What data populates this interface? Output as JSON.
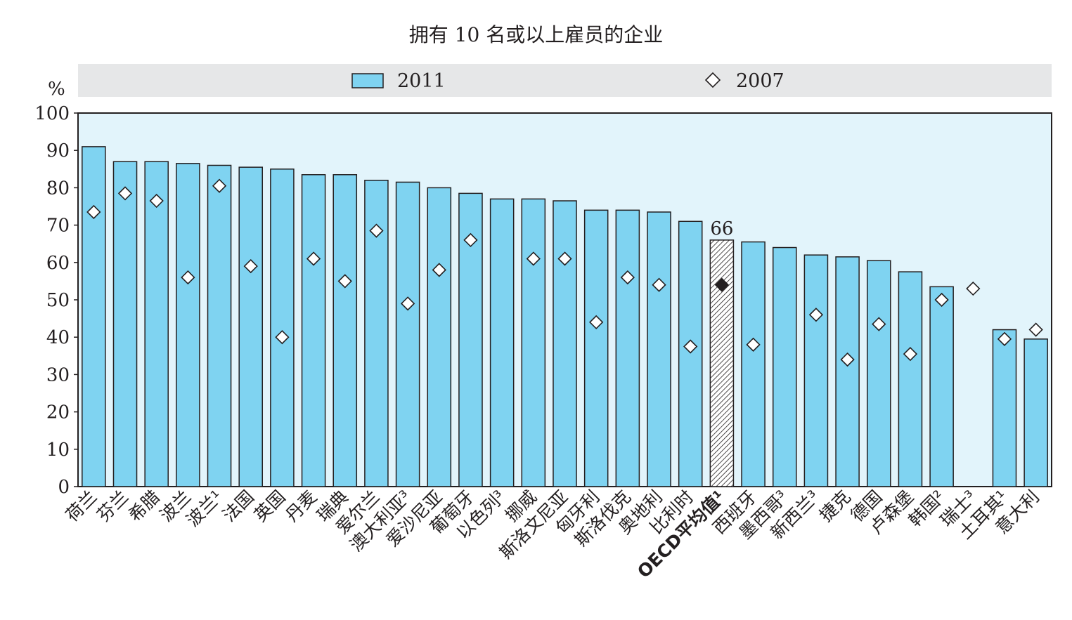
{
  "chart_data": {
    "type": "bar",
    "title": "拥有 10 名或以上雇员的企业",
    "ylabel": "%",
    "ylim": [
      0,
      100
    ],
    "yticks": [
      "0",
      "10",
      "20",
      "30",
      "40",
      "50",
      "60",
      "70",
      "80",
      "90",
      "100"
    ],
    "grid": false,
    "legend_position": "top",
    "categories": [
      "荷兰",
      "芬兰",
      "希腊",
      "波兰",
      "波兰¹",
      "法国",
      "英国",
      "丹麦",
      "瑞典",
      "爱尔兰",
      "澳大利亚³",
      "爱沙尼亚",
      "葡萄牙",
      "以色列³",
      "挪威",
      "斯洛文尼亚",
      "匈牙利",
      "斯洛伐克",
      "奥地利",
      "比利时",
      "OECD平均值¹",
      "西班牙",
      "墨西哥³",
      "新西兰³",
      "捷克",
      "德国",
      "卢森堡",
      "韩国²",
      "瑞士³",
      "土耳其¹",
      "意大利"
    ],
    "series": [
      {
        "name": "2011",
        "type": "bar",
        "color": "#7fd3f1",
        "values": [
          91,
          87,
          87,
          86.5,
          86,
          85.5,
          85,
          83.5,
          83.5,
          82,
          81.5,
          80,
          78.5,
          77,
          77,
          76.5,
          74,
          74,
          73.5,
          71,
          66,
          65.5,
          64,
          62,
          61.5,
          60.5,
          57.5,
          53.5,
          null,
          42,
          39.5
        ]
      },
      {
        "name": "2007",
        "type": "marker",
        "color": "#ffffff",
        "values": [
          73.5,
          78.5,
          76.5,
          56,
          80.5,
          59,
          40,
          61,
          55,
          68.5,
          49,
          58,
          66,
          null,
          61,
          61,
          44,
          56,
          54,
          37.5,
          54,
          38,
          null,
          46,
          34,
          43.5,
          35.5,
          50,
          53,
          39.5,
          42
        ]
      }
    ],
    "highlight": {
      "category": "OECD平均值¹",
      "label": "66",
      "bar_fill": "hatched",
      "marker_fill": "#231f20"
    }
  },
  "colors": {
    "plot_background": "#e2f4fb",
    "legend_background": "#e6e7e8",
    "bar_fill": "#7fd3f1",
    "bar_stroke": "#231f20",
    "axis": "#231f20"
  }
}
